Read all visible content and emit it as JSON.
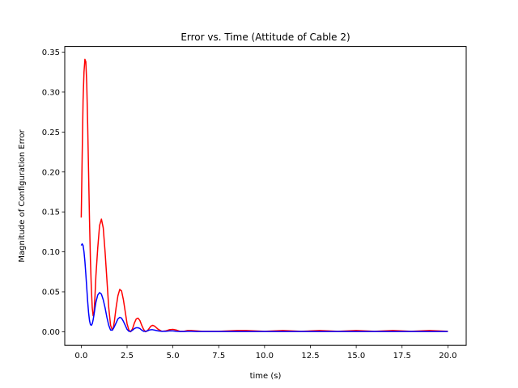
{
  "chart_data": {
    "type": "line",
    "title": "Error vs. Time (Attitude of Cable 2)",
    "xlabel": "time (s)",
    "ylabel": "Magnitude of Configuration Error",
    "xlim": [
      -0.9,
      21.0
    ],
    "ylim": [
      -0.017,
      0.357
    ],
    "xticks": [
      0.0,
      2.5,
      5.0,
      7.5,
      10.0,
      12.5,
      15.0,
      17.5,
      20.0
    ],
    "xtick_labels": [
      "0.0",
      "2.5",
      "5.0",
      "7.5",
      "10.0",
      "12.5",
      "15.0",
      "17.5",
      "20.0"
    ],
    "yticks": [
      0.0,
      0.05,
      0.1,
      0.15,
      0.2,
      0.25,
      0.3,
      0.35
    ],
    "ytick_labels": [
      "0.00",
      "0.05",
      "0.10",
      "0.15",
      "0.20",
      "0.25",
      "0.30",
      "0.35"
    ],
    "grid": false,
    "series": [
      {
        "color": "#ff0000",
        "x": [
          0.0,
          0.05,
          0.1,
          0.15,
          0.2,
          0.25,
          0.3,
          0.35,
          0.4,
          0.45,
          0.5,
          0.55,
          0.6,
          0.65,
          0.7,
          0.75,
          0.8,
          0.9,
          1.0,
          1.1,
          1.2,
          1.3,
          1.4,
          1.5,
          1.6,
          1.7,
          1.75,
          1.8,
          1.9,
          2.0,
          2.1,
          2.2,
          2.3,
          2.4,
          2.5,
          2.6,
          2.7,
          2.8,
          2.9,
          3.0,
          3.1,
          3.2,
          3.3,
          3.4,
          3.5,
          3.6,
          3.7,
          3.8,
          3.9,
          4.0,
          4.2,
          4.4,
          4.6,
          4.8,
          5.0,
          5.2,
          5.4,
          5.6,
          5.8,
          6.0,
          6.3,
          6.6,
          7.0,
          7.5,
          8.0,
          8.5,
          9.0,
          9.5,
          10.0,
          10.5,
          11.0,
          11.5,
          12.0,
          12.5,
          13.0,
          13.5,
          14.0,
          14.5,
          15.0,
          15.5,
          16.0,
          16.5,
          17.0,
          17.5,
          18.0,
          18.5,
          19.0,
          19.5,
          20.0
        ],
        "y": [
          0.143,
          0.22,
          0.29,
          0.325,
          0.341,
          0.338,
          0.31,
          0.26,
          0.2,
          0.14,
          0.09,
          0.055,
          0.03,
          0.02,
          0.025,
          0.045,
          0.07,
          0.105,
          0.133,
          0.141,
          0.13,
          0.1,
          0.065,
          0.03,
          0.008,
          0.002,
          0.005,
          0.012,
          0.03,
          0.045,
          0.053,
          0.051,
          0.04,
          0.025,
          0.01,
          0.002,
          0.0,
          0.004,
          0.011,
          0.016,
          0.017,
          0.014,
          0.008,
          0.003,
          0.0,
          0.001,
          0.004,
          0.007,
          0.008,
          0.007,
          0.003,
          0.0005,
          0.001,
          0.0025,
          0.003,
          0.002,
          0.0005,
          0.0005,
          0.0015,
          0.0015,
          0.001,
          0.0005,
          0.0005,
          0.0005,
          0.001,
          0.0015,
          0.0015,
          0.001,
          0.0005,
          0.001,
          0.0015,
          0.001,
          0.0005,
          0.001,
          0.0015,
          0.001,
          0.0005,
          0.001,
          0.0015,
          0.001,
          0.0005,
          0.001,
          0.0015,
          0.001,
          0.0005,
          0.001,
          0.0015,
          0.001,
          0.0005
        ]
      },
      {
        "color": "#0000ff",
        "x": [
          0.0,
          0.05,
          0.1,
          0.15,
          0.2,
          0.25,
          0.3,
          0.35,
          0.4,
          0.45,
          0.5,
          0.55,
          0.6,
          0.65,
          0.7,
          0.75,
          0.8,
          0.9,
          1.0,
          1.1,
          1.2,
          1.3,
          1.4,
          1.5,
          1.6,
          1.7,
          1.75,
          1.8,
          1.9,
          2.0,
          2.1,
          2.2,
          2.3,
          2.4,
          2.5,
          2.6,
          2.7,
          2.8,
          2.9,
          3.0,
          3.1,
          3.2,
          3.3,
          3.4,
          3.5,
          3.6,
          3.7,
          3.8,
          3.9,
          4.0,
          4.2,
          4.4,
          4.6,
          4.8,
          5.0,
          5.2,
          5.4,
          5.6,
          5.8,
          6.0,
          6.3,
          6.6,
          7.0,
          7.5,
          8.0,
          8.5,
          9.0,
          9.5,
          10.0,
          10.5,
          11.0,
          11.5,
          12.0,
          12.5,
          13.0,
          13.5,
          14.0,
          14.5,
          15.0,
          15.5,
          16.0,
          16.5,
          17.0,
          17.5,
          18.0,
          18.5,
          19.0,
          19.5,
          20.0
        ],
        "y": [
          0.108,
          0.11,
          0.108,
          0.1,
          0.088,
          0.072,
          0.055,
          0.038,
          0.024,
          0.014,
          0.009,
          0.008,
          0.01,
          0.015,
          0.022,
          0.03,
          0.037,
          0.046,
          0.049,
          0.047,
          0.04,
          0.03,
          0.018,
          0.008,
          0.002,
          0.002,
          0.004,
          0.006,
          0.011,
          0.016,
          0.018,
          0.017,
          0.013,
          0.008,
          0.003,
          0.0005,
          0.0005,
          0.002,
          0.004,
          0.005,
          0.005,
          0.004,
          0.002,
          0.0005,
          0.0005,
          0.001,
          0.002,
          0.0025,
          0.0025,
          0.002,
          0.001,
          0.0005,
          0.0005,
          0.001,
          0.001,
          0.0005,
          0.0003,
          0.0003,
          0.0005,
          0.0005,
          0.0003,
          0.0003,
          0.0003,
          0.0003,
          0.0003,
          0.0003,
          0.0003,
          0.0003,
          0.0003,
          0.0003,
          0.0003,
          0.0003,
          0.0003,
          0.0003,
          0.0003,
          0.0003,
          0.0003,
          0.0003,
          0.0003,
          0.0003,
          0.0003,
          0.0003,
          0.0003,
          0.0003,
          0.0003,
          0.0003,
          0.0003,
          0.0003,
          0.0003
        ]
      }
    ]
  }
}
